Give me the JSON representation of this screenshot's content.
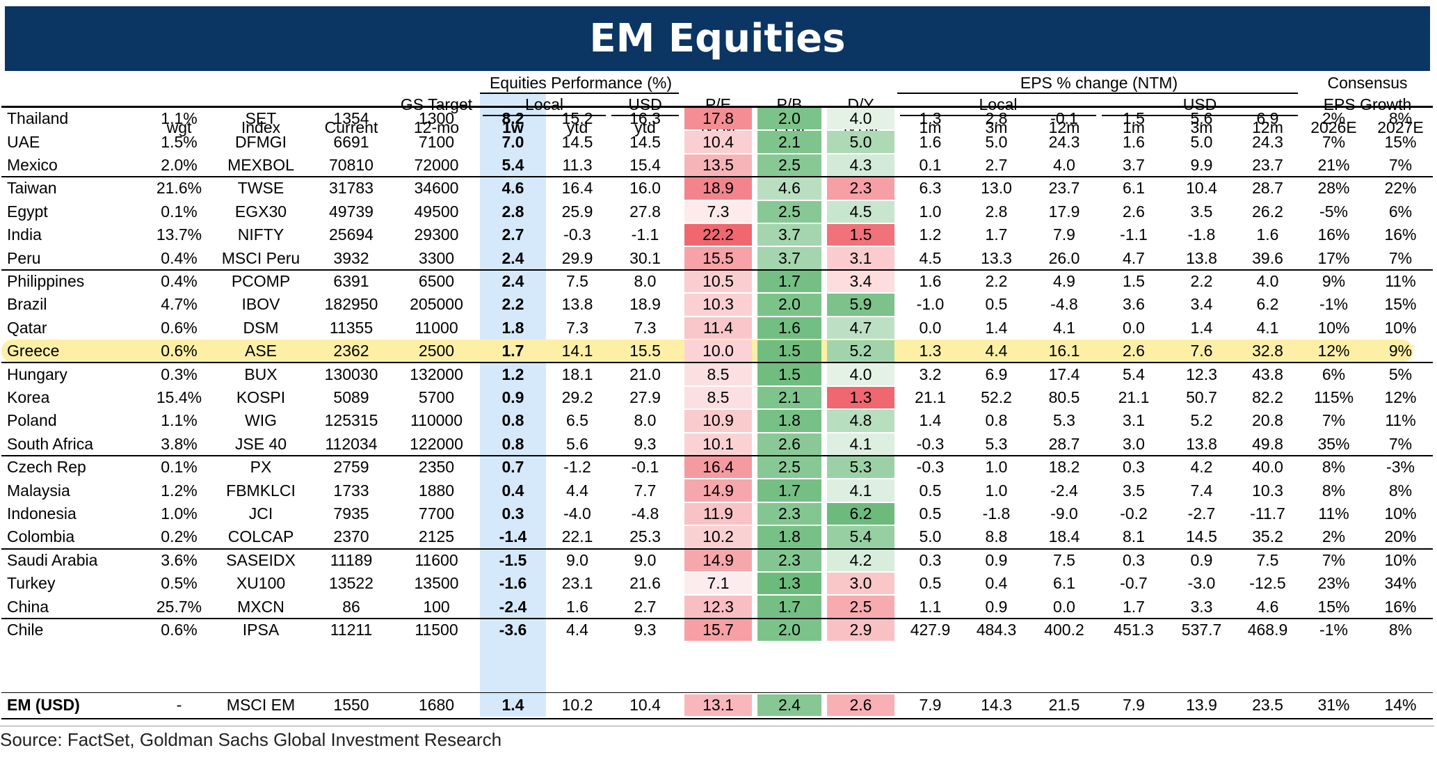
{
  "title": "EM Equities",
  "source": "Source: FactSet, Goldman Sachs Global Investment Research",
  "colors": {
    "title_bg": "#0b3563",
    "highlight": "#fdf0a6",
    "perf_1w_band": "#d6e9fb",
    "pe_red": "#f0676f",
    "pb_green": "#6cbb7c",
    "dy_low_red": "#f0676f",
    "dy_high_green": "#6cbb7c"
  },
  "headers": {
    "group_perf": "Equities Performance (%)",
    "group_eps": "EPS % change (NTM)",
    "group_consensus_1": "Consensus",
    "group_consensus_2": "EPS Growth",
    "gs_target_1": "GS Target",
    "gs_target_2": "12-mo",
    "local": "Local",
    "usd": "USD",
    "pe_1": "P/E",
    "pe_2": "NTM",
    "pb_1": "P/B",
    "pb_2": "LTM",
    "dy_1": "D/Y",
    "dy_2": "NTM",
    "eps_local": "Local",
    "eps_usd": "USD",
    "cols": [
      "",
      "wgt",
      "Index",
      "Current",
      "12-mo",
      "1w",
      "ytd",
      "ytd",
      "NTM",
      "LTM",
      "NTM",
      "1m",
      "3m",
      "12m",
      "1m",
      "3m",
      "12m",
      "2026E",
      "2027E"
    ]
  },
  "chart_data": {
    "type": "table",
    "columns": [
      "Country",
      "wgt",
      "Index",
      "Current",
      "GS Target 12-mo",
      "Local 1w",
      "Local ytd",
      "USD ytd",
      "P/E NTM",
      "P/B LTM",
      "D/Y NTM",
      "EPS Local 1m",
      "EPS Local 3m",
      "EPS Local 12m",
      "EPS USD 1m",
      "EPS USD 3m",
      "EPS USD 12m",
      "Consensus EPS Growth 2026E",
      "Consensus EPS Growth 2027E"
    ],
    "highlighted_row": "Greece",
    "rows": [
      [
        "Thailand",
        "1.1%",
        "SET",
        "1354",
        "1300",
        "8.2",
        "15.2",
        "16.3",
        "17.8",
        "2.0",
        "4.0",
        "1.3",
        "2.8",
        "-0.1",
        "1.5",
        "5.6",
        "6.9",
        "2%",
        "8%"
      ],
      [
        "UAE",
        "1.5%",
        "DFMGI",
        "6691",
        "7100",
        "7.0",
        "14.5",
        "14.5",
        "10.4",
        "2.1",
        "5.0",
        "1.6",
        "5.0",
        "24.3",
        "1.6",
        "5.0",
        "24.3",
        "7%",
        "15%"
      ],
      [
        "Mexico",
        "2.0%",
        "MEXBOL",
        "70810",
        "72000",
        "5.4",
        "11.3",
        "15.4",
        "13.5",
        "2.5",
        "4.3",
        "0.1",
        "2.7",
        "4.0",
        "3.7",
        "9.9",
        "23.7",
        "21%",
        "7%"
      ],
      [
        "Taiwan",
        "21.6%",
        "TWSE",
        "31783",
        "34600",
        "4.6",
        "16.4",
        "16.0",
        "18.9",
        "4.6",
        "2.3",
        "6.3",
        "13.0",
        "23.7",
        "6.1",
        "10.4",
        "28.7",
        "28%",
        "22%"
      ],
      [
        "Egypt",
        "0.1%",
        "EGX30",
        "49739",
        "49500",
        "2.8",
        "25.9",
        "27.8",
        "7.3",
        "2.5",
        "4.5",
        "1.0",
        "2.8",
        "17.9",
        "2.6",
        "3.5",
        "26.2",
        "-5%",
        "6%"
      ],
      [
        "India",
        "13.7%",
        "NIFTY",
        "25694",
        "29300",
        "2.7",
        "-0.3",
        "-1.1",
        "22.2",
        "3.7",
        "1.5",
        "1.2",
        "1.7",
        "7.9",
        "-1.1",
        "-1.8",
        "1.6",
        "16%",
        "16%"
      ],
      [
        "Peru",
        "0.4%",
        "MSCI Peru",
        "3932",
        "3300",
        "2.4",
        "29.9",
        "30.1",
        "15.5",
        "3.7",
        "3.1",
        "4.5",
        "13.3",
        "26.0",
        "4.7",
        "13.8",
        "39.6",
        "17%",
        "7%"
      ],
      [
        "Philippines",
        "0.4%",
        "PCOMP",
        "6391",
        "6500",
        "2.4",
        "7.5",
        "8.0",
        "10.5",
        "1.7",
        "3.4",
        "1.6",
        "2.2",
        "4.9",
        "1.5",
        "2.2",
        "4.0",
        "9%",
        "11%"
      ],
      [
        "Brazil",
        "4.7%",
        "IBOV",
        "182950",
        "205000",
        "2.2",
        "13.8",
        "18.9",
        "10.3",
        "2.0",
        "5.9",
        "-1.0",
        "0.5",
        "-4.8",
        "3.6",
        "3.4",
        "6.2",
        "-1%",
        "15%"
      ],
      [
        "Qatar",
        "0.6%",
        "DSM",
        "11355",
        "11000",
        "1.8",
        "7.3",
        "7.3",
        "11.4",
        "1.6",
        "4.7",
        "0.0",
        "1.4",
        "4.1",
        "0.0",
        "1.4",
        "4.1",
        "10%",
        "10%"
      ],
      [
        "Greece",
        "0.6%",
        "ASE",
        "2362",
        "2500",
        "1.7",
        "14.1",
        "15.5",
        "10.0",
        "1.5",
        "5.2",
        "1.3",
        "4.4",
        "16.1",
        "2.6",
        "7.6",
        "32.8",
        "12%",
        "9%"
      ],
      [
        "Hungary",
        "0.3%",
        "BUX",
        "130030",
        "132000",
        "1.2",
        "18.1",
        "21.0",
        "8.5",
        "1.5",
        "4.0",
        "3.2",
        "6.9",
        "17.4",
        "5.4",
        "12.3",
        "43.8",
        "6%",
        "5%"
      ],
      [
        "Korea",
        "15.4%",
        "KOSPI",
        "5089",
        "5700",
        "0.9",
        "29.2",
        "27.9",
        "8.5",
        "2.1",
        "1.3",
        "21.1",
        "52.2",
        "80.5",
        "21.1",
        "50.7",
        "82.2",
        "115%",
        "12%"
      ],
      [
        "Poland",
        "1.1%",
        "WIG",
        "125315",
        "110000",
        "0.8",
        "6.5",
        "8.0",
        "10.9",
        "1.8",
        "4.8",
        "1.4",
        "0.8",
        "5.3",
        "3.1",
        "5.2",
        "20.8",
        "7%",
        "11%"
      ],
      [
        "South Africa",
        "3.8%",
        "JSE 40",
        "112034",
        "122000",
        "0.8",
        "5.6",
        "9.3",
        "10.1",
        "2.6",
        "4.1",
        "-0.3",
        "5.3",
        "28.7",
        "3.0",
        "13.8",
        "49.8",
        "35%",
        "7%"
      ],
      [
        "Czech Rep",
        "0.1%",
        "PX",
        "2759",
        "2350",
        "0.7",
        "-1.2",
        "-0.1",
        "16.4",
        "2.5",
        "5.3",
        "-0.3",
        "1.0",
        "18.2",
        "0.3",
        "4.2",
        "40.0",
        "8%",
        "-3%"
      ],
      [
        "Malaysia",
        "1.2%",
        "FBMKLCI",
        "1733",
        "1880",
        "0.4",
        "4.4",
        "7.7",
        "14.9",
        "1.7",
        "4.1",
        "0.5",
        "1.0",
        "-2.4",
        "3.5",
        "7.4",
        "10.3",
        "8%",
        "8%"
      ],
      [
        "Indonesia",
        "1.0%",
        "JCI",
        "7935",
        "7700",
        "0.3",
        "-4.0",
        "-4.8",
        "11.9",
        "2.3",
        "6.2",
        "0.5",
        "-1.8",
        "-9.0",
        "-0.2",
        "-2.7",
        "-11.7",
        "11%",
        "10%"
      ],
      [
        "Colombia",
        "0.2%",
        "COLCAP",
        "2370",
        "2125",
        "-1.4",
        "22.1",
        "25.3",
        "10.2",
        "1.8",
        "5.4",
        "5.0",
        "8.8",
        "18.4",
        "8.1",
        "14.5",
        "35.2",
        "2%",
        "20%"
      ],
      [
        "Saudi Arabia",
        "3.6%",
        "SASEIDX",
        "11189",
        "11600",
        "-1.5",
        "9.0",
        "9.0",
        "14.9",
        "2.3",
        "4.2",
        "0.3",
        "0.9",
        "7.5",
        "0.3",
        "0.9",
        "7.5",
        "7%",
        "10%"
      ],
      [
        "Turkey",
        "0.5%",
        "XU100",
        "13522",
        "13500",
        "-1.6",
        "23.1",
        "21.6",
        "7.1",
        "1.3",
        "3.0",
        "0.5",
        "0.4",
        "6.1",
        "-0.7",
        "-3.0",
        "-12.5",
        "23%",
        "34%"
      ],
      [
        "China",
        "25.7%",
        "MXCN",
        "86",
        "100",
        "-2.4",
        "1.6",
        "2.7",
        "12.3",
        "1.7",
        "2.5",
        "1.1",
        "0.9",
        "0.0",
        "1.7",
        "3.3",
        "4.6",
        "15%",
        "16%"
      ],
      [
        "Chile",
        "0.6%",
        "IPSA",
        "11211",
        "11500",
        "-3.6",
        "4.4",
        "9.3",
        "15.7",
        "2.0",
        "2.9",
        "427.9",
        "484.3",
        "400.2",
        "451.3",
        "537.7",
        "468.9",
        "-1%",
        "8%"
      ]
    ],
    "total_row": [
      "EM (USD)",
      "-",
      "MSCI EM",
      "1550",
      "1680",
      "1.4",
      "10.2",
      "10.4",
      "13.1",
      "2.4",
      "2.6",
      "7.9",
      "14.3",
      "21.5",
      "7.9",
      "13.9",
      "23.5",
      "31%",
      "14%"
    ]
  }
}
